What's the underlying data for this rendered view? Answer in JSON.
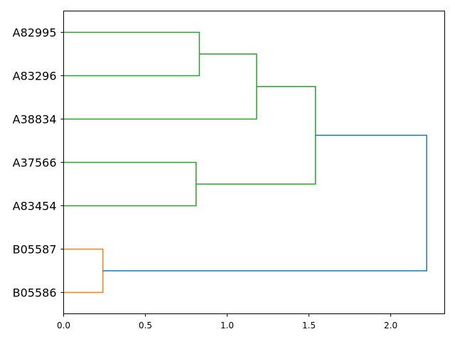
{
  "chart_data": {
    "type": "dendrogram",
    "orientation": "left",
    "xlim": [
      0,
      2.33
    ],
    "xticks": [
      "0.0",
      "0.5",
      "1.0",
      "1.5",
      "2.0"
    ],
    "xtick_values": [
      0,
      0.5,
      1.0,
      1.5,
      2.0
    ],
    "grid": false,
    "leaves": [
      "A82995",
      "A83296",
      "A38834",
      "A37566",
      "A83454",
      "B05587",
      "B05586"
    ],
    "links": [
      {
        "left": "A82995",
        "right": "A83296",
        "height": 0.83,
        "color": "#2ca02c"
      },
      {
        "left": "A82995+A83296",
        "right": "A38834",
        "height": 1.18,
        "color": "#2ca02c"
      },
      {
        "left": "A37566",
        "right": "A83454",
        "height": 0.81,
        "color": "#2ca02c"
      },
      {
        "left": "A82995+A83296+A38834",
        "right": "A37566+A83454",
        "height": 1.54,
        "color": "#2ca02c"
      },
      {
        "left": "B05587",
        "right": "B05586",
        "height": 0.24,
        "color": "#ff7f0e"
      },
      {
        "left": "A-cluster",
        "right": "B-cluster",
        "height": 2.22,
        "color": "#1f77b4"
      }
    ]
  }
}
